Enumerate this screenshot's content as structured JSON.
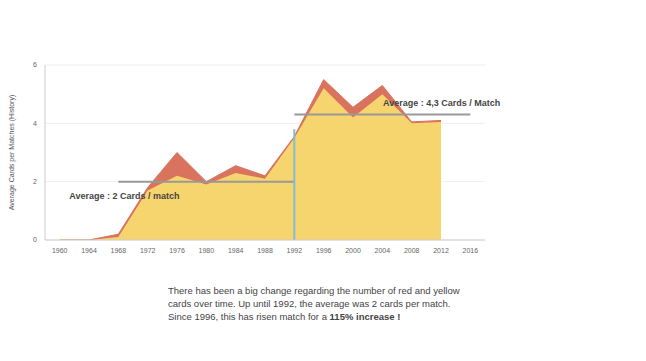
{
  "chart_data": {
    "type": "area",
    "stacked": true,
    "grid": true,
    "y_label": "Average Cards per Matches (History)",
    "x": [
      1960,
      1964,
      1968,
      1972,
      1976,
      1980,
      1984,
      1988,
      1992,
      1996,
      2000,
      2004,
      2008,
      2012
    ],
    "series": [
      {
        "color": "#f7d56e",
        "values": [
          0,
          0,
          0.1,
          1.7,
          2.2,
          1.9,
          2.3,
          2.1,
          3.5,
          5.2,
          4.2,
          5.0,
          4.0,
          4.05
        ]
      },
      {
        "color": "#d9735e",
        "values": [
          0,
          0,
          0.1,
          0.1,
          0.8,
          0.1,
          0.25,
          0.1,
          0.05,
          0.3,
          0.35,
          0.3,
          0.05,
          0.05
        ]
      }
    ],
    "xlim": [
      1958,
      2018
    ],
    "xticks": [
      1960,
      1964,
      1968,
      1972,
      1976,
      1980,
      1984,
      1988,
      1992,
      1996,
      2000,
      2004,
      2008,
      2012,
      2016
    ],
    "ylim": [
      0,
      6
    ],
    "yticks": [
      0,
      2,
      4,
      6
    ],
    "annotations": [
      {
        "text": "Average : 2 Cards / match",
        "y": 2,
        "x": [
          1968,
          1992
        ]
      },
      {
        "text": "Average : 4,3 Cards / Match",
        "y": 4.3,
        "x": [
          1992,
          2016
        ]
      }
    ],
    "vertical_line": {
      "x": 1992,
      "y": [
        0,
        3.8
      ]
    },
    "note": {
      "text": "There has been a big change regarding the number of red and yellow cards over time. Up until 1992, the average was 2 cards per match. Since 1996, this has risen match for a ",
      "bold": "115% increase !"
    }
  }
}
